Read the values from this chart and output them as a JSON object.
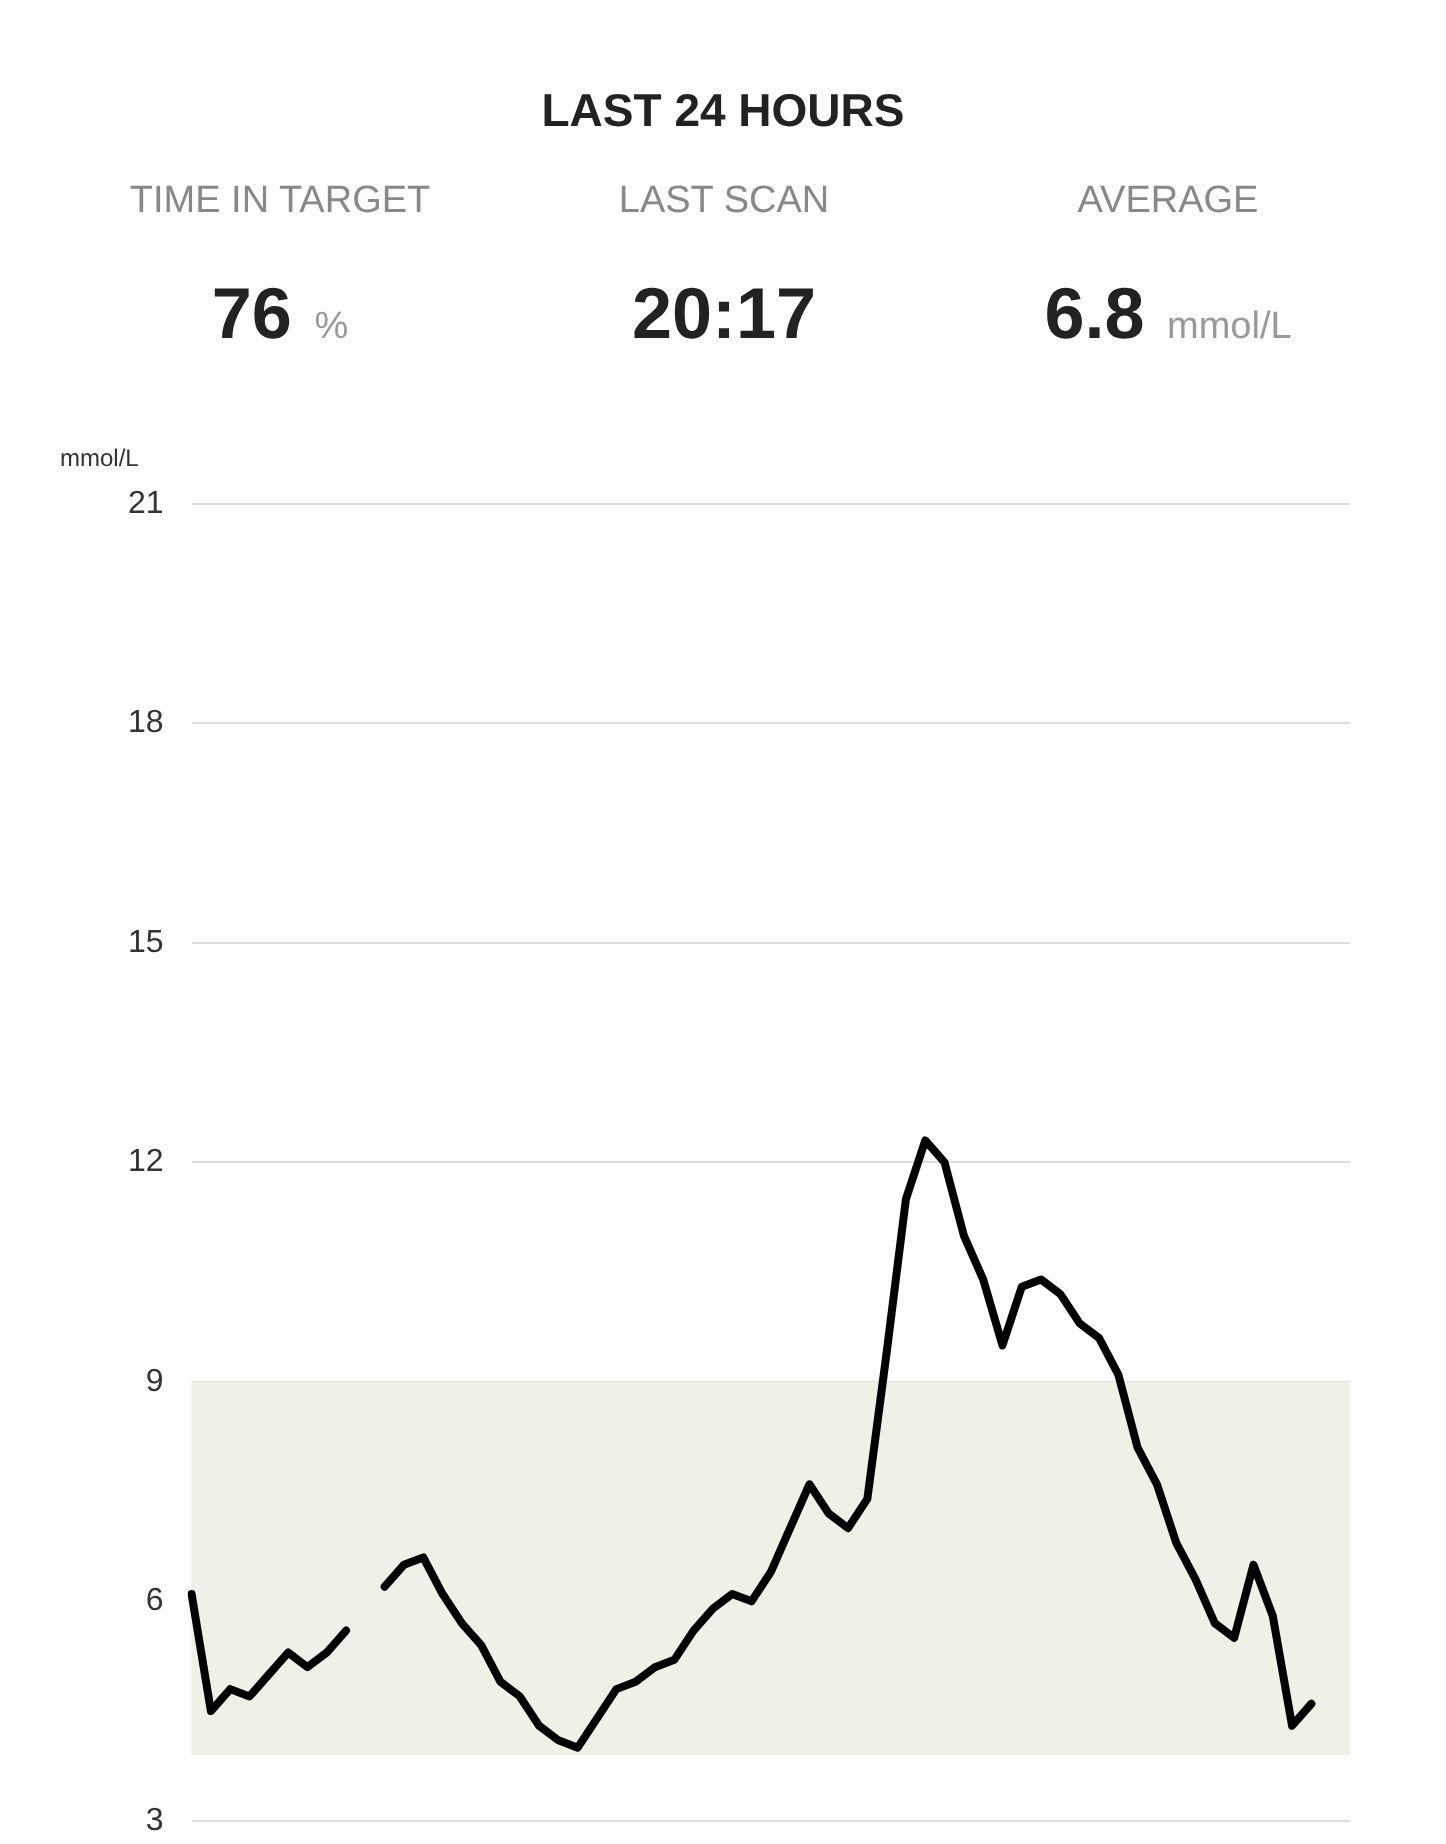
{
  "chart_data": {
    "type": "line",
    "title": "LAST 24 HOURS",
    "annotations": [
      "TIME IN TARGET",
      "76 %",
      "LAST SCAN",
      "20:17",
      "AVERAGE",
      "6.8 mmol/L"
    ],
    "ylabel": "mmol/L",
    "categories": [
      null,
      null,
      null,
      null,
      null,
      null,
      null,
      null,
      null,
      null,
      null,
      null,
      null,
      null,
      null,
      null,
      null,
      null,
      null,
      null,
      null,
      null,
      null,
      null,
      null,
      null,
      null,
      null,
      null,
      null,
      null,
      null,
      null,
      null,
      null,
      null,
      null,
      null,
      null,
      null,
      null,
      null,
      null,
      null,
      null,
      null,
      null,
      null,
      null,
      null,
      null,
      null,
      null,
      null,
      null,
      null,
      null,
      null,
      null,
      null,
      null
    ],
    "series": [
      {
        "color": "#000000",
        "values": [
          6.1,
          4.5,
          4.8,
          4.7,
          5.0,
          5.3,
          5.1,
          5.3,
          5.6,
          null,
          null,
          null,
          null,
          null,
          null,
          null,
          null,
          null,
          null,
          null,
          null,
          null,
          null,
          null,
          null,
          null,
          null,
          null,
          null,
          null,
          null,
          null,
          null,
          null,
          null,
          null,
          null,
          null,
          null,
          null,
          null,
          null,
          null,
          null,
          null,
          null,
          null,
          null,
          null,
          null,
          null,
          null,
          null,
          null,
          null,
          null,
          null,
          null,
          null,
          null,
          null
        ]
      },
      {
        "color": "#000000",
        "values": [
          null,
          null,
          null,
          null,
          null,
          null,
          null,
          null,
          null,
          null,
          6.2,
          6.5,
          6.6,
          6.1,
          5.7,
          5.4,
          4.9,
          4.7,
          4.3,
          4.1,
          4.0,
          4.4,
          4.8,
          4.9,
          5.1,
          5.2,
          5.6,
          5.9,
          6.1,
          6.0,
          6.4,
          7.0,
          7.6,
          7.2,
          7.0,
          7.4,
          9.4,
          11.5,
          12.3,
          12.0,
          11.0,
          10.4,
          9.5,
          10.3,
          10.4,
          10.2,
          9.8,
          9.6,
          9.1,
          8.1,
          7.6,
          6.8,
          6.3,
          5.7,
          5.5,
          6.5,
          5.8,
          4.3,
          4.6,
          null,
          null
        ]
      }
    ],
    "ylim": [
      3,
      21
    ],
    "yticks": [
      3,
      6,
      9,
      12,
      15,
      18,
      21
    ],
    "grid": "y",
    "legend": false,
    "marker": "none",
    "line_style": "solid",
    "tick_labels": "y",
    "bands": [
      {
        "axis": "y",
        "from": 3.9,
        "to": 9,
        "color": "#eef2e6"
      }
    ]
  }
}
